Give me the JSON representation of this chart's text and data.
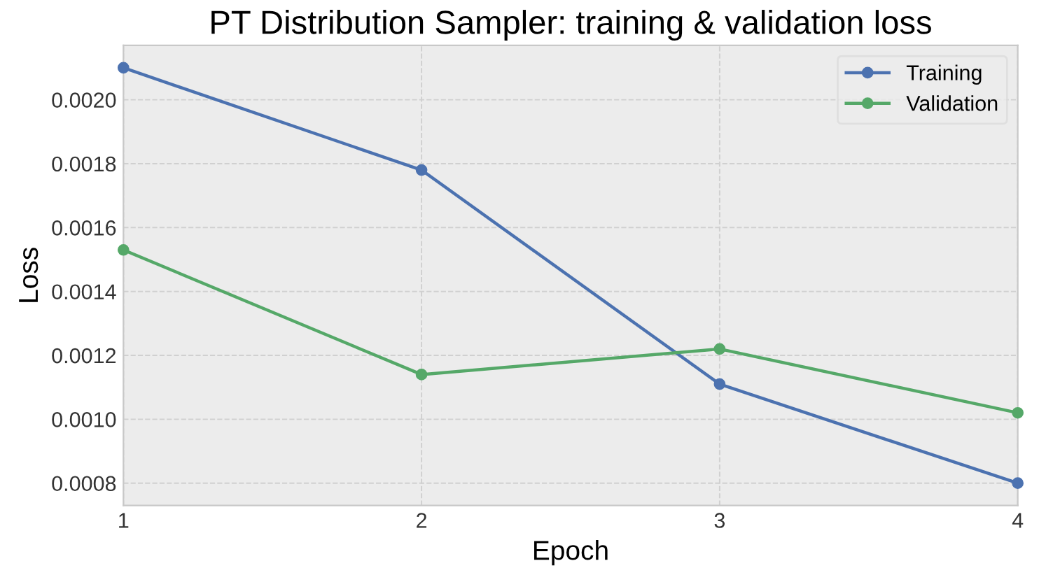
{
  "chart_data": {
    "type": "line",
    "title": "PT Distribution Sampler: training & validation loss",
    "xlabel": "Epoch",
    "ylabel": "Loss",
    "x": [
      1,
      2,
      3,
      4
    ],
    "series": [
      {
        "name": "Training",
        "color": "#4c72b0",
        "values": [
          0.0021,
          0.00178,
          0.00111,
          0.0008
        ]
      },
      {
        "name": "Validation",
        "color": "#55a868",
        "values": [
          0.00153,
          0.00114,
          0.00122,
          0.00102
        ]
      }
    ],
    "xlim": [
      1,
      4
    ],
    "xticks": [
      1,
      2,
      3,
      4
    ],
    "ylim": [
      0.00073,
      0.00217
    ],
    "yticks": [
      {
        "value": 0.0008,
        "label": "0.0008"
      },
      {
        "value": 0.001,
        "label": "0.0010"
      },
      {
        "value": 0.0012,
        "label": "0.0012"
      },
      {
        "value": 0.0014,
        "label": "0.0014"
      },
      {
        "value": 0.0016,
        "label": "0.0016"
      },
      {
        "value": 0.0018,
        "label": "0.0018"
      },
      {
        "value": 0.002,
        "label": "0.0020"
      }
    ],
    "grid": true,
    "legend": "top right",
    "marker": "circle",
    "line_style": "solid"
  }
}
